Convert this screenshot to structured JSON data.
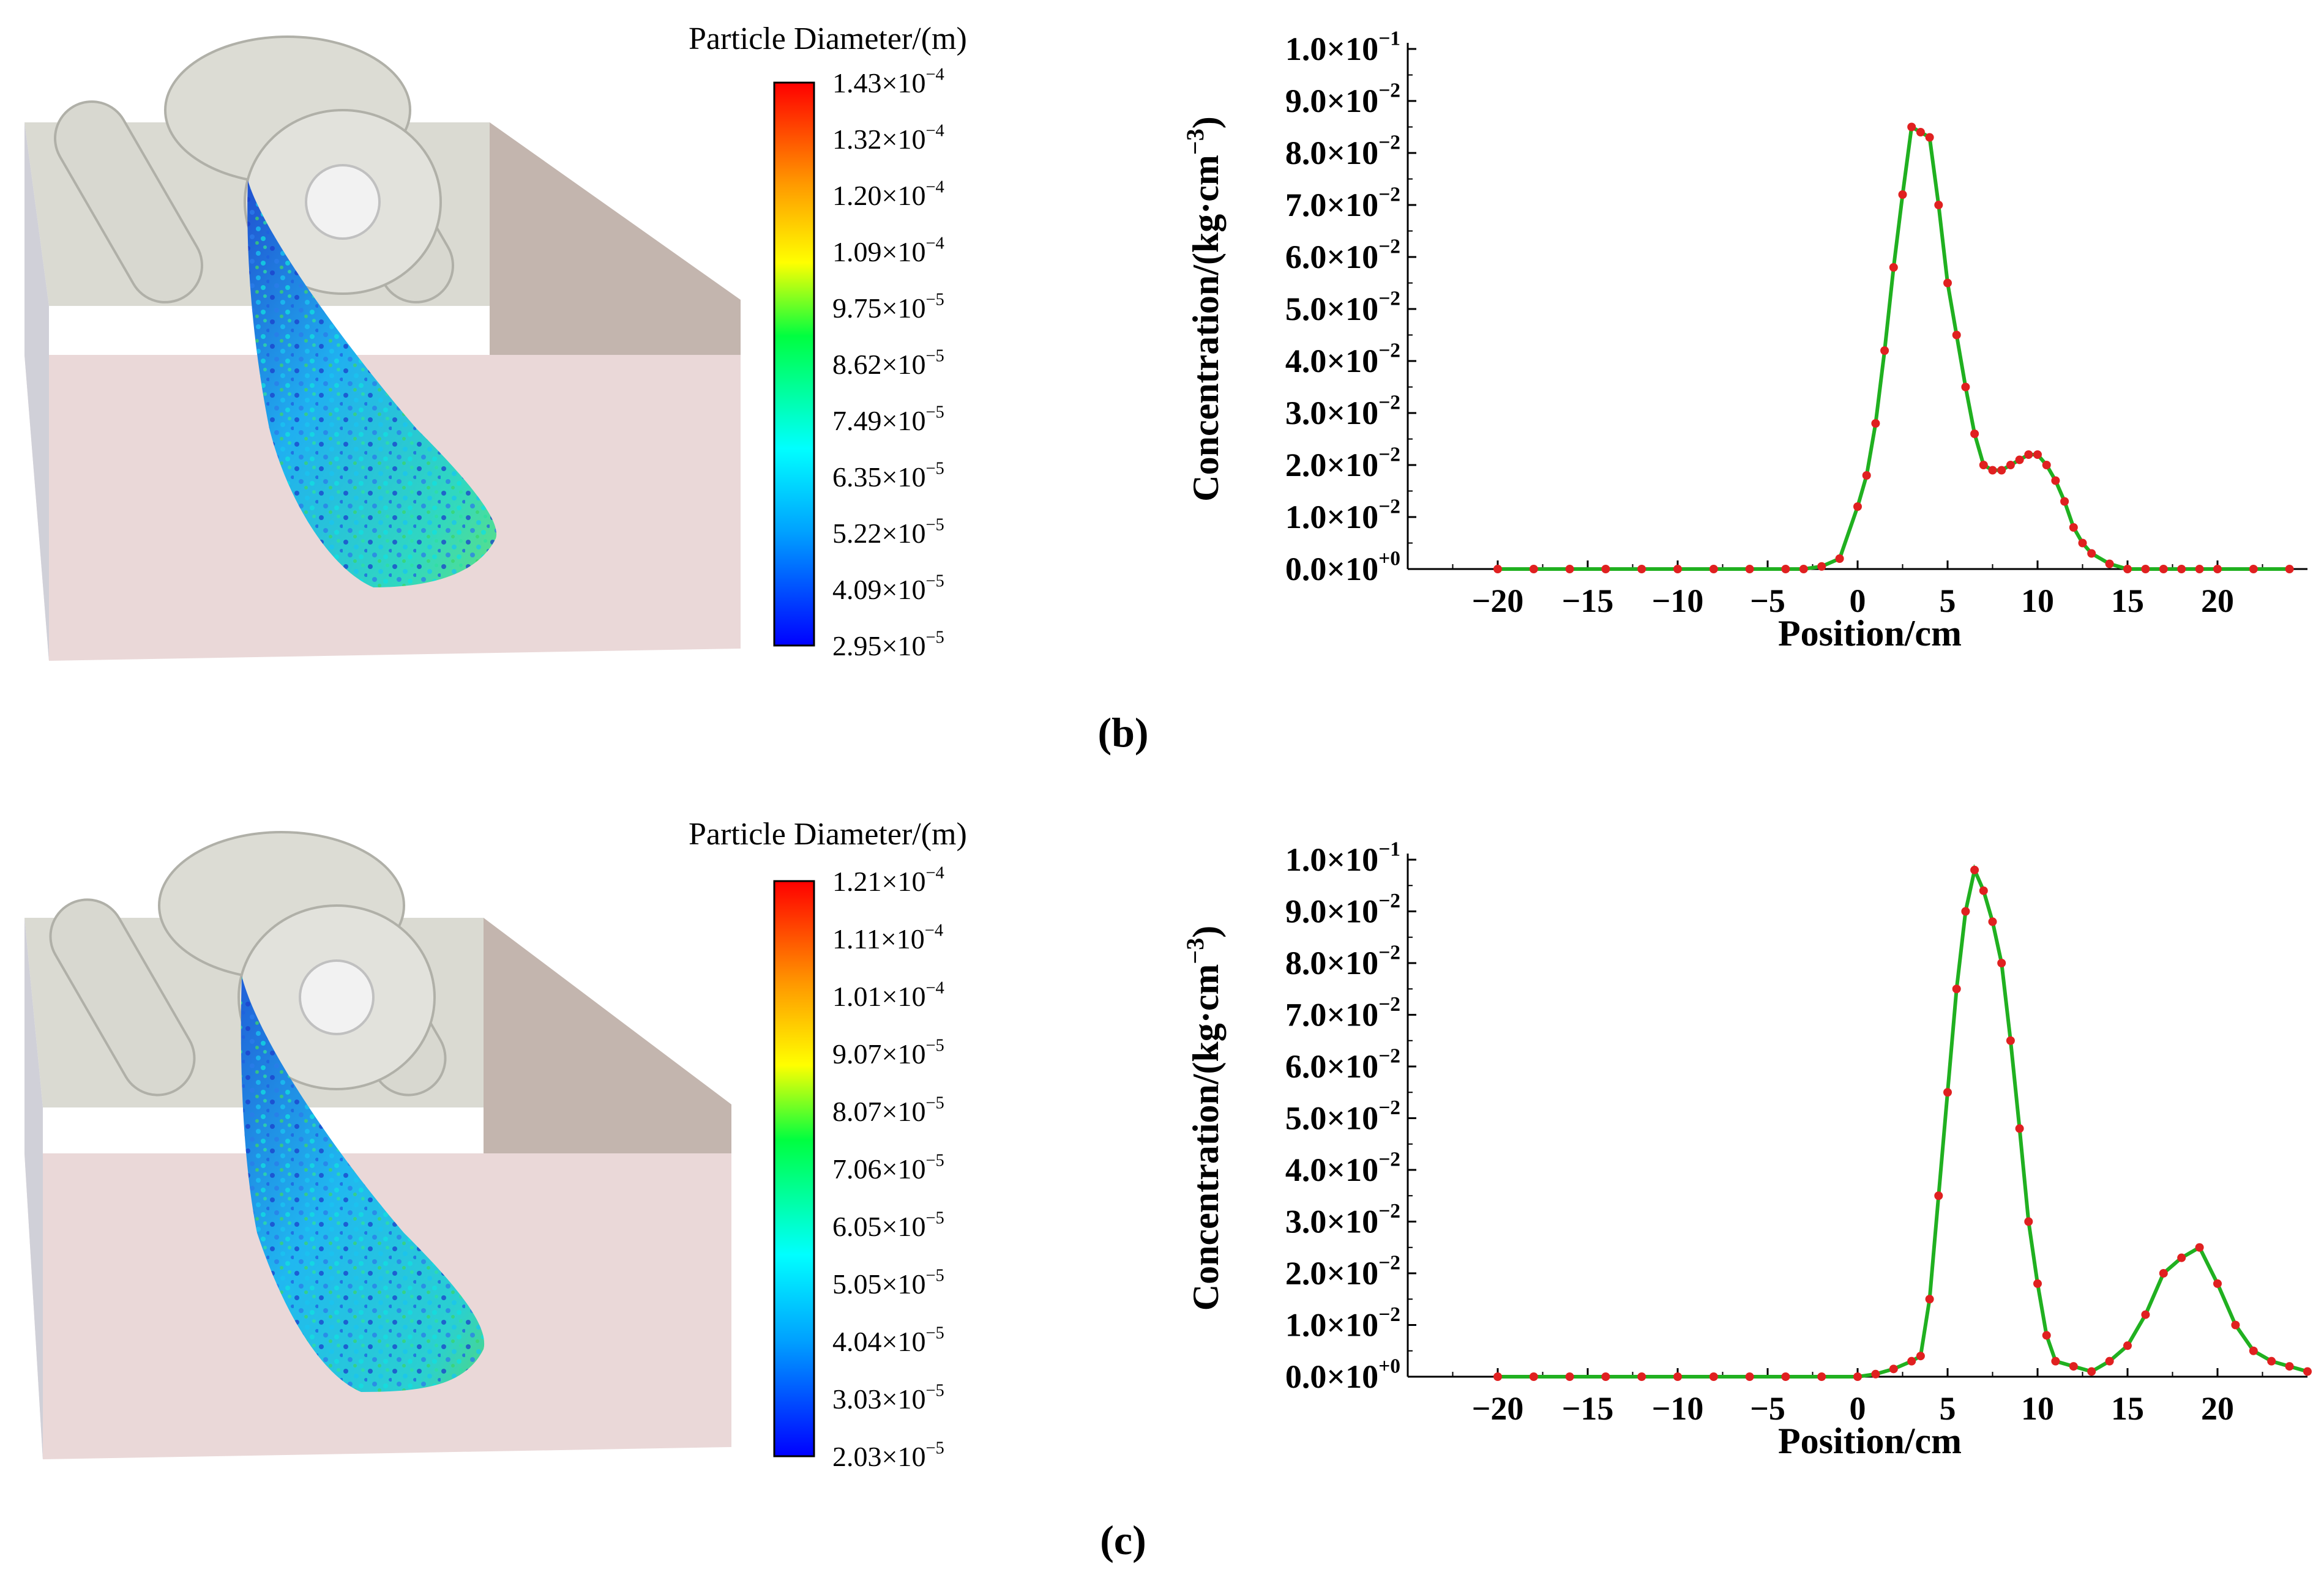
{
  "panels": [
    {
      "label": "(b)",
      "colorbar": {
        "title": "Particle Diameter/(m)",
        "ticks": [
          {
            "m": "1.43",
            "e": "-4"
          },
          {
            "m": "1.32",
            "e": "-4"
          },
          {
            "m": "1.20",
            "e": "-4"
          },
          {
            "m": "1.09",
            "e": "-4"
          },
          {
            "m": "9.75",
            "e": "-5"
          },
          {
            "m": "8.62",
            "e": "-5"
          },
          {
            "m": "7.49",
            "e": "-5"
          },
          {
            "m": "6.35",
            "e": "-5"
          },
          {
            "m": "5.22",
            "e": "-5"
          },
          {
            "m": "4.09",
            "e": "-5"
          },
          {
            "m": "2.95",
            "e": "-5"
          }
        ]
      },
      "chart_data": {
        "type": "line",
        "title": "",
        "xlabel": "Position/cm",
        "ylabel_main": "Concentration/(kg·cm",
        "ylabel_exp": "−3",
        "ylabel_close": ")",
        "xlim": [
          -25,
          25
        ],
        "ylim": [
          0,
          0.1
        ],
        "xticks": [
          -20,
          -15,
          -10,
          -5,
          0,
          5,
          10,
          15,
          20
        ],
        "yticks": [
          {
            "m": "0.0",
            "e": "+0",
            "v": 0.0
          },
          {
            "m": "1.0",
            "e": "−2",
            "v": 0.01
          },
          {
            "m": "2.0",
            "e": "−2",
            "v": 0.02
          },
          {
            "m": "3.0",
            "e": "−2",
            "v": 0.03
          },
          {
            "m": "4.0",
            "e": "−2",
            "v": 0.04
          },
          {
            "m": "5.0",
            "e": "−2",
            "v": 0.05
          },
          {
            "m": "6.0",
            "e": "−2",
            "v": 0.06
          },
          {
            "m": "7.0",
            "e": "−2",
            "v": 0.07
          },
          {
            "m": "8.0",
            "e": "−2",
            "v": 0.08
          },
          {
            "m": "9.0",
            "e": "−2",
            "v": 0.09
          },
          {
            "m": "1.0",
            "e": "−1",
            "v": 0.1
          }
        ],
        "series": [
          {
            "name": "concentration",
            "line_color": "#20b020",
            "marker_color": "#e02020",
            "x": [
              -20,
              -18,
              -16,
              -14,
              -12,
              -10,
              -8,
              -6,
              -4,
              -3,
              -2,
              -1,
              0,
              0.5,
              1,
              1.5,
              2,
              2.5,
              3,
              3.5,
              4,
              4.5,
              5,
              5.5,
              6,
              6.5,
              7,
              7.5,
              8,
              8.5,
              9,
              9.5,
              10,
              10.5,
              11,
              11.5,
              12,
              12.5,
              13,
              14,
              15,
              16,
              17,
              18,
              19,
              20,
              22,
              24
            ],
            "y": [
              0,
              0,
              0,
              0,
              0,
              0,
              0,
              0,
              0,
              0,
              0.0005,
              0.002,
              0.012,
              0.018,
              0.028,
              0.042,
              0.058,
              0.072,
              0.085,
              0.084,
              0.083,
              0.07,
              0.055,
              0.045,
              0.035,
              0.026,
              0.02,
              0.019,
              0.019,
              0.02,
              0.021,
              0.022,
              0.022,
              0.02,
              0.017,
              0.013,
              0.008,
              0.005,
              0.003,
              0.001,
              0,
              0,
              0,
              0,
              0,
              0,
              0,
              0
            ]
          }
        ]
      }
    },
    {
      "label": "(c)",
      "colorbar": {
        "title": "Particle Diameter/(m)",
        "ticks": [
          {
            "m": "1.21",
            "e": "-4"
          },
          {
            "m": "1.11",
            "e": "-4"
          },
          {
            "m": "1.01",
            "e": "-4"
          },
          {
            "m": "9.07",
            "e": "-5"
          },
          {
            "m": "8.07",
            "e": "-5"
          },
          {
            "m": "7.06",
            "e": "-5"
          },
          {
            "m": "6.05",
            "e": "-5"
          },
          {
            "m": "5.05",
            "e": "-5"
          },
          {
            "m": "4.04",
            "e": "-5"
          },
          {
            "m": "3.03",
            "e": "-5"
          },
          {
            "m": "2.03",
            "e": "-5"
          }
        ]
      },
      "chart_data": {
        "type": "line",
        "title": "",
        "xlabel": "Position/cm",
        "ylabel_main": "Concentration/(kg·cm",
        "ylabel_exp": "−3",
        "ylabel_close": ")",
        "xlim": [
          -25,
          25
        ],
        "ylim": [
          0,
          0.1
        ],
        "xticks": [
          -20,
          -15,
          -10,
          -5,
          0,
          5,
          10,
          15,
          20
        ],
        "yticks": [
          {
            "m": "0.0",
            "e": "+0",
            "v": 0.0
          },
          {
            "m": "1.0",
            "e": "−2",
            "v": 0.01
          },
          {
            "m": "2.0",
            "e": "−2",
            "v": 0.02
          },
          {
            "m": "3.0",
            "e": "−2",
            "v": 0.03
          },
          {
            "m": "4.0",
            "e": "−2",
            "v": 0.04
          },
          {
            "m": "5.0",
            "e": "−2",
            "v": 0.05
          },
          {
            "m": "6.0",
            "e": "−2",
            "v": 0.06
          },
          {
            "m": "7.0",
            "e": "−2",
            "v": 0.07
          },
          {
            "m": "8.0",
            "e": "−2",
            "v": 0.08
          },
          {
            "m": "9.0",
            "e": "−2",
            "v": 0.09
          },
          {
            "m": "1.0",
            "e": "−1",
            "v": 0.1
          }
        ],
        "series": [
          {
            "name": "concentration",
            "line_color": "#20b020",
            "marker_color": "#e02020",
            "x": [
              -20,
              -18,
              -16,
              -14,
              -12,
              -10,
              -8,
              -6,
              -4,
              -2,
              0,
              1,
              2,
              3,
              3.5,
              4,
              4.5,
              5,
              5.5,
              6,
              6.5,
              7,
              7.5,
              8,
              8.5,
              9,
              9.5,
              10,
              10.5,
              11,
              12,
              13,
              14,
              15,
              16,
              17,
              18,
              19,
              20,
              21,
              22,
              23,
              24,
              25
            ],
            "y": [
              0,
              0,
              0,
              0,
              0,
              0,
              0,
              0,
              0,
              0,
              0,
              0.0005,
              0.0015,
              0.003,
              0.004,
              0.015,
              0.035,
              0.055,
              0.075,
              0.09,
              0.098,
              0.094,
              0.088,
              0.08,
              0.065,
              0.048,
              0.03,
              0.018,
              0.008,
              0.003,
              0.002,
              0.001,
              0.003,
              0.006,
              0.012,
              0.02,
              0.023,
              0.025,
              0.018,
              0.01,
              0.005,
              0.003,
              0.002,
              0.001
            ]
          }
        ]
      }
    }
  ]
}
